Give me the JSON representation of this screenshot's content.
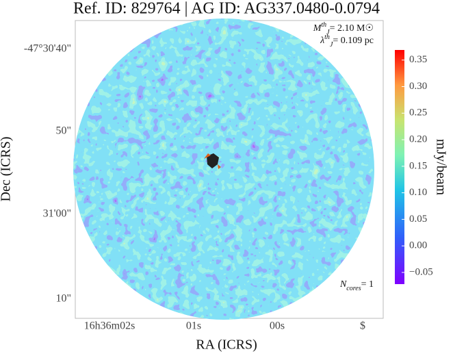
{
  "chart_data": {
    "type": "image",
    "title": "Ref. ID: 829764 | AG ID: AG337.0480-0.0794",
    "xlabel": "RA (ICRS)",
    "ylabel": "Dec (ICRS)",
    "xtick_labels": [
      "16h36m02s",
      "01s",
      "00s",
      "$"
    ],
    "ytick_labels": [
      "-47°30'40\"",
      "50\"",
      "31'00\"",
      "10\""
    ],
    "annotations": {
      "mass": {
        "symbol": "M",
        "sub": "J",
        "sup": "th",
        "text": "= 2.10 M☉"
      },
      "length": {
        "symbol": "λ",
        "sub": "J",
        "sup": "th",
        "text": "= 0.109 pc"
      },
      "cores": {
        "symbol": "N",
        "sub": "cores",
        "text": "= 1"
      }
    },
    "colorbar": {
      "label": "mJy/beam",
      "lim": [
        -0.072,
        0.369
      ],
      "ticks": [
        {
          "value": -0.05,
          "label": "−0.05"
        },
        {
          "value": 0,
          "label": "0.00"
        },
        0.05,
        {
          "value": 0.1,
          "label": "0.10"
        },
        0.15,
        {
          "value": 0.2,
          "label": "0.20"
        },
        0.25,
        {
          "value": 0.3,
          "label": "0.30"
        },
        0.35
      ]
    }
  }
}
